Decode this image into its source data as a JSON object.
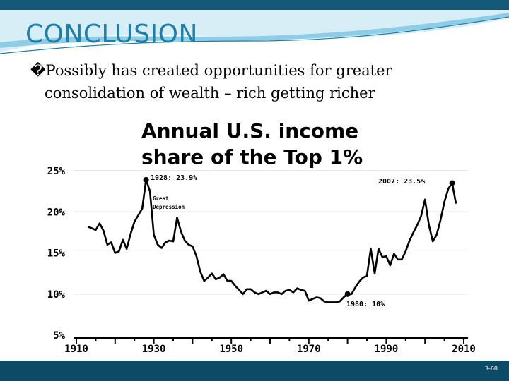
{
  "slide": {
    "title": "CONCLUSION",
    "bullet_marker": "�",
    "bullet_text": "Possibly has created opportunities for greater consolidation of wealth – rich getting richer",
    "slide_number": "3-68",
    "colors": {
      "title": "#1e7fa8",
      "band_light": "#d7eef7",
      "band_mid": "#8fcde6",
      "band_dark": "#145a78",
      "footer": "#0d4a66",
      "chart_line": "#000000",
      "grid": "#cfcfcf"
    }
  },
  "chart_data": {
    "type": "line",
    "title_line1": "Annual U.S. income",
    "title_line2": "share of the Top 1%",
    "xlabel": "",
    "ylabel": "",
    "xlim": [
      1910,
      2010
    ],
    "ylim": [
      5,
      25
    ],
    "x_ticks": [
      "1910",
      "1930",
      "1950",
      "1970",
      "1990",
      "2010"
    ],
    "y_ticks": [
      "5%",
      "10%",
      "15%",
      "20%",
      "25%"
    ],
    "grid": true,
    "series": [
      {
        "x": [
          1913,
          1914,
          1915,
          1916,
          1917,
          1918,
          1919,
          1920,
          1921,
          1922,
          1923,
          1924,
          1925,
          1926,
          1927,
          1928,
          1929,
          1930,
          1931,
          1932,
          1933,
          1934,
          1935,
          1936,
          1937,
          1938,
          1939,
          1940,
          1941,
          1942,
          1943,
          1944,
          1945,
          1946,
          1947,
          1948,
          1949,
          1950,
          1951,
          1952,
          1953,
          1954,
          1955,
          1956,
          1957,
          1958,
          1959,
          1960,
          1961,
          1962,
          1963,
          1964,
          1965,
          1966,
          1967,
          1968,
          1969,
          1970,
          1971,
          1972,
          1973,
          1974,
          1975,
          1976,
          1977,
          1978,
          1979,
          1980,
          1981,
          1982,
          1983,
          1984,
          1985,
          1986,
          1987,
          1988,
          1989,
          1990,
          1991,
          1992,
          1993,
          1994,
          1995,
          1996,
          1997,
          1998,
          1999,
          2000,
          2001,
          2002,
          2003,
          2004,
          2005,
          2006,
          2007,
          2008
        ],
        "values": [
          18.2,
          18.0,
          17.8,
          18.6,
          17.7,
          16.0,
          16.3,
          15.0,
          15.2,
          16.6,
          15.5,
          17.3,
          18.8,
          19.6,
          20.4,
          23.9,
          22.5,
          17.2,
          16.0,
          15.6,
          16.3,
          16.5,
          16.4,
          19.3,
          17.6,
          16.5,
          16.0,
          15.8,
          14.6,
          12.7,
          11.6,
          12.0,
          12.5,
          11.8,
          12.0,
          12.4,
          11.6,
          11.6,
          11.0,
          10.5,
          10.0,
          10.6,
          10.6,
          10.2,
          10.0,
          10.2,
          10.4,
          10.0,
          10.2,
          10.2,
          10.0,
          10.4,
          10.5,
          10.2,
          10.7,
          10.5,
          10.4,
          9.2,
          9.4,
          9.6,
          9.5,
          9.1,
          9.0,
          9.0,
          9.0,
          9.1,
          9.6,
          10.0,
          10.0,
          10.8,
          11.5,
          12.0,
          12.2,
          15.5,
          12.5,
          15.5,
          14.5,
          14.6,
          13.5,
          14.9,
          14.2,
          14.2,
          15.2,
          16.5,
          17.5,
          18.4,
          19.5,
          21.5,
          18.4,
          16.4,
          17.2,
          19.0,
          21.2,
          22.8,
          23.5,
          21.0
        ]
      }
    ],
    "markers": [
      {
        "x": 1928,
        "y": 23.9
      },
      {
        "x": 1980,
        "y": 10.0
      },
      {
        "x": 2007,
        "y": 23.5
      }
    ],
    "annotations": [
      {
        "text": "1928: 23.9%"
      },
      {
        "text": "Great"
      },
      {
        "text": "Depression"
      },
      {
        "text": "1980: 10%"
      },
      {
        "text": "2007: 23.5%"
      }
    ]
  }
}
